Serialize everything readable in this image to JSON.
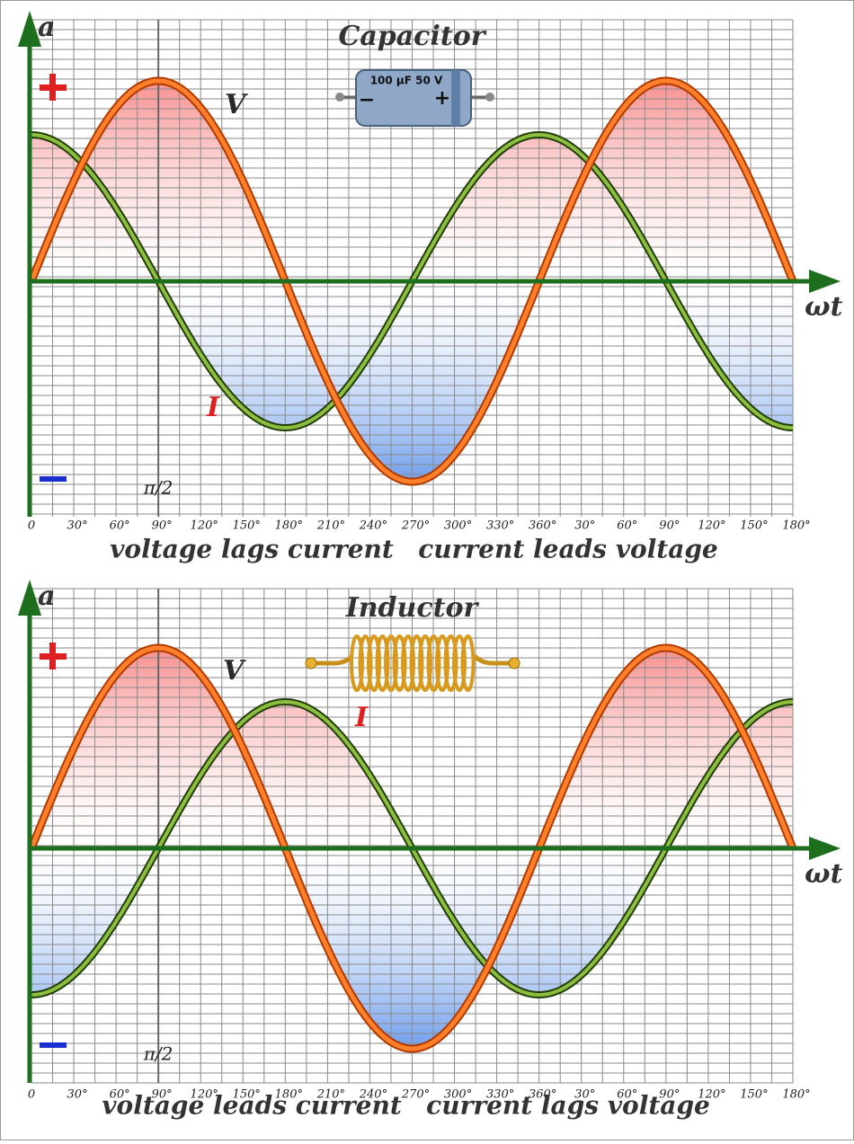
{
  "panels": [
    {
      "title": "Capacitor",
      "y_axis_label": "a",
      "x_axis_label": "ωt",
      "voltage_label": "V",
      "current_label": "I",
      "marker_label": "π/2",
      "component_text": [
        "100 µF  50 V",
        "−",
        "+"
      ],
      "x_ticks": [
        "0",
        "30°",
        "60°",
        "90°",
        "120°",
        "150°",
        "180°",
        "210°",
        "240°",
        "270°",
        "300°",
        "330°",
        "360°",
        "30°",
        "60°",
        "90°",
        "120°",
        "150°",
        "180°"
      ],
      "caption_left": "voltage lags current",
      "caption_right": "current leads voltage"
    },
    {
      "title": "Inductor",
      "y_axis_label": "a",
      "x_axis_label": "ωt",
      "voltage_label": "V",
      "current_label": "I",
      "marker_label": "π/2",
      "x_ticks": [
        "0",
        "30°",
        "60°",
        "90°",
        "120°",
        "150°",
        "180°",
        "210°",
        "240°",
        "270°",
        "300°",
        "330°",
        "360°",
        "30°",
        "60°",
        "90°",
        "120°",
        "150°",
        "180°"
      ],
      "caption_left": "voltage leads current",
      "caption_right": "current lags voltage"
    }
  ]
}
